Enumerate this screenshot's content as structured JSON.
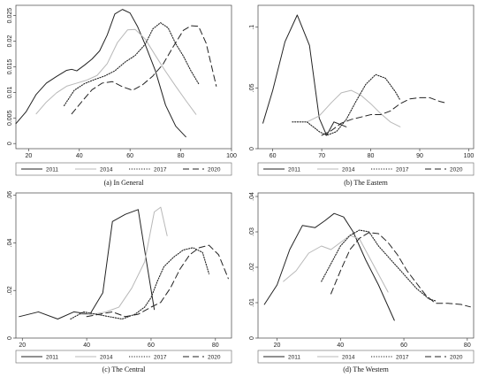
{
  "chart_data": [
    {
      "type": "line",
      "caption": "(a) In General",
      "xlim": [
        15,
        100
      ],
      "ylim": [
        -0.001,
        0.027
      ],
      "xticks": [
        20,
        40,
        60,
        80,
        100
      ],
      "yticks": [
        0,
        0.005,
        0.01,
        0.015,
        0.02,
        0.025
      ],
      "ytick_labels": [
        "0",
        "0.005",
        "0.01",
        "0.015",
        "0.02",
        "0.025"
      ],
      "legend_position": "bottom",
      "series": [
        {
          "name": "2011",
          "style": "solid",
          "x": [
            15,
            19,
            23,
            27,
            31,
            35,
            37,
            39,
            42,
            45,
            48,
            51,
            54,
            57,
            60,
            63,
            66,
            70,
            74,
            78,
            82
          ],
          "y": [
            0.0039,
            0.0062,
            0.0096,
            0.0118,
            0.0131,
            0.0143,
            0.0145,
            0.0142,
            0.0153,
            0.0165,
            0.0181,
            0.0212,
            0.0253,
            0.0262,
            0.0255,
            0.0228,
            0.0193,
            0.0142,
            0.0075,
            0.0034,
            0.0013
          ]
        },
        {
          "name": "2014",
          "style": "light",
          "x": [
            23,
            27,
            31,
            35,
            39,
            43,
            47,
            51,
            55,
            59,
            62,
            66,
            70,
            74,
            78,
            82,
            86
          ],
          "y": [
            0.0058,
            0.0081,
            0.0099,
            0.0112,
            0.0118,
            0.0124,
            0.0133,
            0.0156,
            0.0197,
            0.0222,
            0.0223,
            0.0204,
            0.0172,
            0.0141,
            0.0112,
            0.0084,
            0.0057
          ]
        },
        {
          "name": "2017",
          "style": "dotted",
          "x": [
            34,
            38,
            42,
            46,
            50,
            54,
            58,
            62,
            66,
            69,
            72,
            75,
            78,
            81,
            84,
            87
          ],
          "y": [
            0.0074,
            0.0104,
            0.0117,
            0.0125,
            0.0132,
            0.0142,
            0.0159,
            0.0172,
            0.0194,
            0.0224,
            0.0236,
            0.0226,
            0.0195,
            0.0171,
            0.0142,
            0.0117
          ]
        },
        {
          "name": "2020",
          "style": "dashed",
          "x": [
            37,
            41,
            45,
            49,
            53,
            57,
            61,
            65,
            69,
            73,
            77,
            81,
            84,
            87,
            90,
            94
          ],
          "y": [
            0.0058,
            0.0082,
            0.0105,
            0.0118,
            0.0121,
            0.0111,
            0.0104,
            0.0115,
            0.0132,
            0.0155,
            0.0189,
            0.0221,
            0.023,
            0.0229,
            0.0196,
            0.0112
          ]
        }
      ]
    },
    {
      "type": "line",
      "caption": "(b) The Eastern",
      "xlim": [
        57,
        101
      ],
      "ylim": [
        0,
        0.118
      ],
      "xticks": [
        60,
        70,
        80,
        90,
        100
      ],
      "yticks": [
        0,
        0.05,
        0.1
      ],
      "ytick_labels": [
        "0",
        ".05",
        ".1"
      ],
      "legend_position": "bottom",
      "series": [
        {
          "name": "2011",
          "style": "solid",
          "x": [
            58,
            60,
            62.5,
            65,
            67.5,
            69.5,
            71,
            72.5,
            75
          ],
          "y": [
            0.021,
            0.048,
            0.088,
            0.11,
            0.085,
            0.025,
            0.011,
            0.022,
            0.018
          ]
        },
        {
          "name": "2014",
          "style": "light",
          "x": [
            67,
            69.5,
            72,
            74,
            76,
            78,
            80,
            82,
            84,
            86
          ],
          "y": [
            0.022,
            0.027,
            0.038,
            0.046,
            0.048,
            0.044,
            0.037,
            0.029,
            0.022,
            0.018
          ]
        },
        {
          "name": "2017",
          "style": "dotted",
          "x": [
            64,
            67,
            69.5,
            71,
            73,
            75,
            77,
            79,
            81,
            83,
            85,
            86
          ],
          "y": [
            0.022,
            0.022,
            0.014,
            0.011,
            0.014,
            0.024,
            0.039,
            0.053,
            0.061,
            0.058,
            0.047,
            0.04
          ]
        },
        {
          "name": "2020",
          "style": "dashed",
          "x": [
            70,
            72,
            74,
            76,
            78,
            80,
            82,
            84,
            86,
            88,
            90,
            92,
            94,
            95
          ],
          "y": [
            0.011,
            0.015,
            0.021,
            0.024,
            0.026,
            0.028,
            0.028,
            0.031,
            0.037,
            0.041,
            0.042,
            0.042,
            0.039,
            0.038
          ]
        }
      ]
    },
    {
      "type": "line",
      "caption": "(c) The Central",
      "xlim": [
        18,
        85
      ],
      "ylim": [
        0,
        0.061
      ],
      "xticks": [
        20,
        40,
        60,
        80
      ],
      "yticks": [
        0,
        0.02,
        0.04,
        0.06
      ],
      "ytick_labels": [
        "0",
        ".02",
        ".04",
        ".06"
      ],
      "legend_position": "bottom",
      "series": [
        {
          "name": "2011",
          "style": "solid",
          "x": [
            19,
            25,
            31,
            36,
            41,
            45,
            48,
            52,
            56,
            58,
            61
          ],
          "y": [
            0.009,
            0.011,
            0.008,
            0.011,
            0.01,
            0.019,
            0.049,
            0.052,
            0.054,
            0.037,
            0.012
          ]
        },
        {
          "name": "2014",
          "style": "light",
          "x": [
            38,
            42,
            46,
            50,
            54,
            58,
            61,
            63,
            65
          ],
          "y": [
            0.01,
            0.01,
            0.011,
            0.013,
            0.021,
            0.032,
            0.053,
            0.055,
            0.043
          ]
        },
        {
          "name": "2017",
          "style": "dotted",
          "x": [
            35,
            39,
            43,
            47,
            51,
            55,
            58,
            60,
            62,
            64,
            67,
            70,
            73,
            76,
            78
          ],
          "y": [
            0.008,
            0.011,
            0.01,
            0.009,
            0.008,
            0.01,
            0.013,
            0.017,
            0.024,
            0.03,
            0.034,
            0.037,
            0.038,
            0.036,
            0.027
          ]
        },
        {
          "name": "2020",
          "style": "dashed",
          "x": [
            40,
            44,
            48,
            52,
            56,
            60,
            63,
            66,
            69,
            72,
            75,
            78,
            81,
            84
          ],
          "y": [
            0.009,
            0.01,
            0.011,
            0.009,
            0.01,
            0.013,
            0.015,
            0.021,
            0.029,
            0.035,
            0.038,
            0.039,
            0.035,
            0.025
          ]
        }
      ]
    },
    {
      "type": "line",
      "caption": "(d) The Western",
      "xlim": [
        14,
        82
      ],
      "ylim": [
        0,
        0.041
      ],
      "xticks": [
        20,
        40,
        60,
        80
      ],
      "yticks": [
        0,
        0.01,
        0.02,
        0.03,
        0.04
      ],
      "ytick_labels": [
        "0",
        ".01",
        ".02",
        ".03",
        ".04"
      ],
      "legend_position": "bottom",
      "series": [
        {
          "name": "2011",
          "style": "solid",
          "x": [
            16,
            20,
            24,
            28,
            32,
            35,
            38,
            41,
            44,
            48,
            52,
            57
          ],
          "y": [
            0.0095,
            0.015,
            0.025,
            0.0318,
            0.0312,
            0.0331,
            0.0352,
            0.0342,
            0.03,
            0.022,
            0.015,
            0.005
          ]
        },
        {
          "name": "2014",
          "style": "light",
          "x": [
            22,
            26,
            30,
            34,
            37,
            40,
            43,
            46,
            49,
            52,
            55
          ],
          "y": [
            0.016,
            0.019,
            0.024,
            0.026,
            0.025,
            0.027,
            0.029,
            0.028,
            0.023,
            0.018,
            0.013
          ]
        },
        {
          "name": "2017",
          "style": "dotted",
          "x": [
            34,
            37,
            40,
            43,
            46,
            49,
            52,
            56,
            60,
            64,
            68,
            70
          ],
          "y": [
            0.016,
            0.021,
            0.026,
            0.029,
            0.0305,
            0.03,
            0.026,
            0.022,
            0.018,
            0.014,
            0.011,
            0.0105
          ]
        },
        {
          "name": "2020",
          "style": "dashed",
          "x": [
            37,
            40,
            43,
            46,
            49,
            52,
            55,
            58,
            61,
            64,
            67,
            70,
            74,
            78,
            81
          ],
          "y": [
            0.0125,
            0.019,
            0.025,
            0.0282,
            0.0298,
            0.0295,
            0.027,
            0.0235,
            0.019,
            0.0155,
            0.012,
            0.0098,
            0.0098,
            0.0095,
            0.0088
          ]
        }
      ]
    }
  ]
}
